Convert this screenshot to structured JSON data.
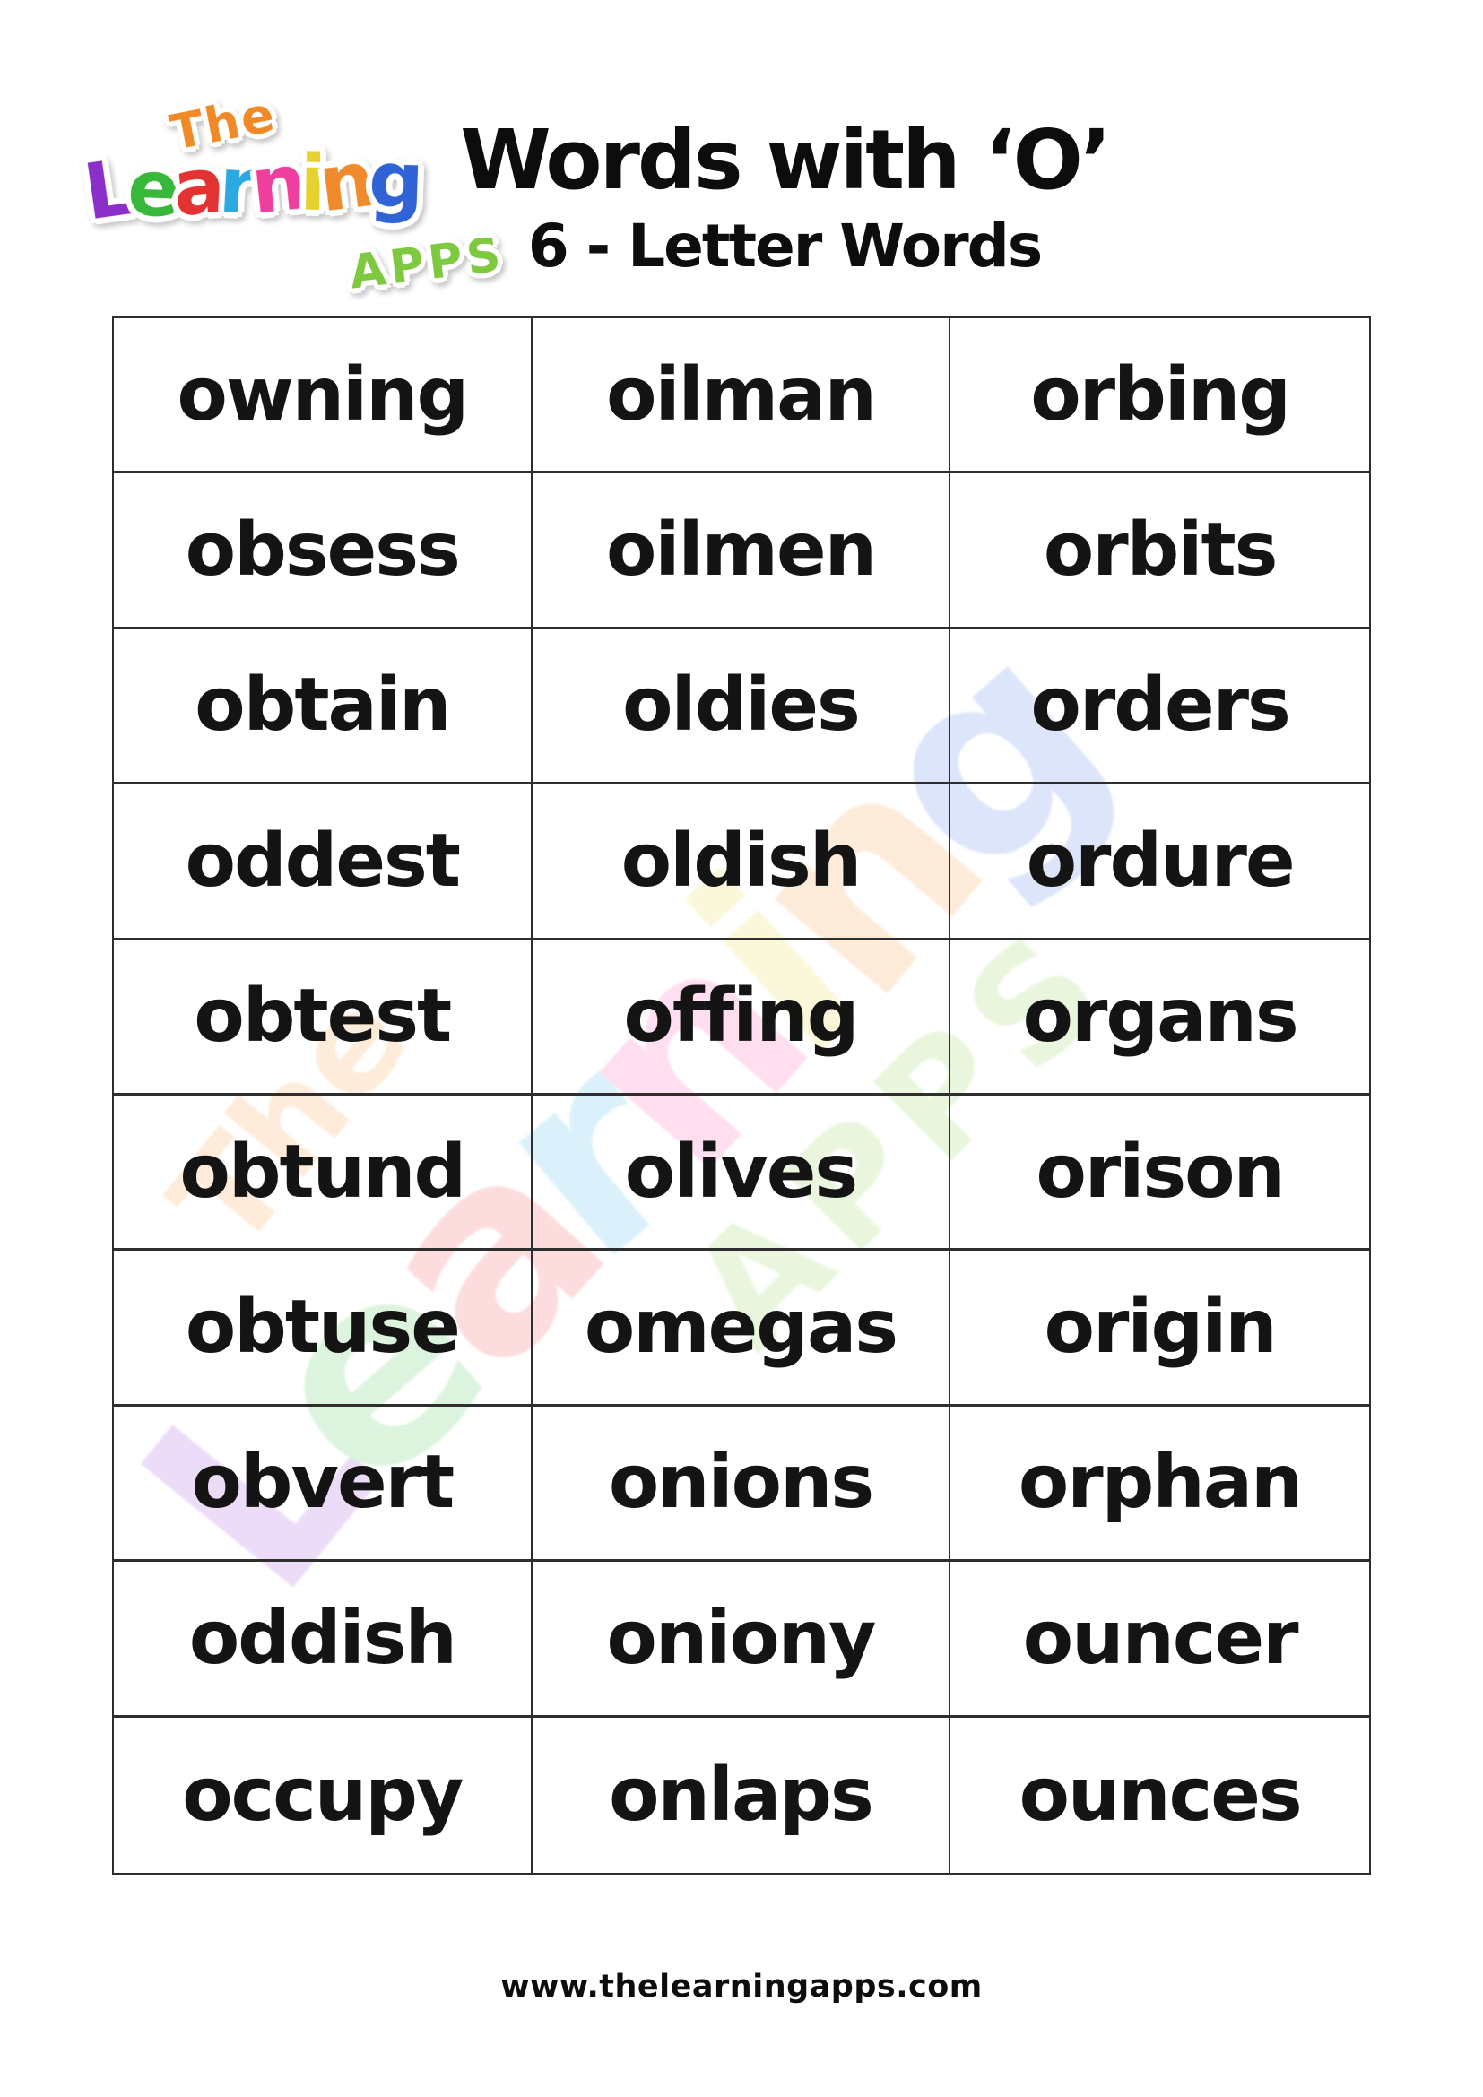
{
  "logo": {
    "the": "The",
    "the_color": "#f08a28",
    "learning": "Learning",
    "learning_colors": [
      "#8a2fc9",
      "#37b83a",
      "#e23232",
      "#2da9e1",
      "#ef3f9e",
      "#e5d22e",
      "#ef8b2d",
      "#2f63d6"
    ],
    "apps": "APPS",
    "apps_color": "#7ec93f"
  },
  "header": {
    "title": "Words with ‘O’",
    "subtitle": "6 - Letter Words"
  },
  "table": {
    "rows": [
      [
        "owning",
        "oilman",
        "orbing"
      ],
      [
        "obsess",
        "oilmen",
        "orbits"
      ],
      [
        "obtain",
        "oldies",
        "orders"
      ],
      [
        "oddest",
        "oldish",
        "ordure"
      ],
      [
        "obtest",
        "offing",
        "organs"
      ],
      [
        "obtund",
        "olives",
        "orison"
      ],
      [
        "obtuse",
        "omegas",
        "origin"
      ],
      [
        "obvert",
        "onions",
        "orphan"
      ],
      [
        "oddish",
        "oniony",
        "ouncer"
      ],
      [
        "occupy",
        "onlaps",
        "ounces"
      ]
    ]
  },
  "footer": {
    "url": "www.thelearningapps.com"
  },
  "colors": {
    "text": "#141414",
    "grid": "#2e2e2e",
    "background": "#ffffff"
  }
}
